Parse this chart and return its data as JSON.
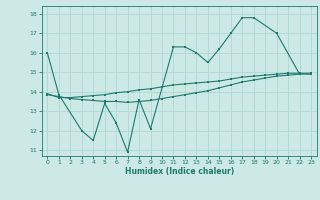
{
  "xlabel": "Humidex (Indice chaleur)",
  "xlim": [
    -0.5,
    23.5
  ],
  "ylim": [
    10.7,
    18.4
  ],
  "yticks": [
    11,
    12,
    13,
    14,
    15,
    16,
    17,
    18
  ],
  "xticks": [
    0,
    1,
    2,
    3,
    4,
    5,
    6,
    7,
    8,
    9,
    10,
    11,
    12,
    13,
    14,
    15,
    16,
    17,
    18,
    19,
    20,
    21,
    22,
    23
  ],
  "bg_color": "#cce9e5",
  "line_color": "#1e7a6e",
  "grid_color": "#b0d8d4",
  "line1_x": [
    0,
    1,
    3,
    4,
    5,
    6,
    7,
    8,
    9,
    11,
    12,
    13,
    14,
    15,
    16,
    17,
    18,
    20,
    22
  ],
  "line1_y": [
    16.0,
    13.85,
    12.0,
    11.5,
    13.4,
    12.4,
    10.9,
    13.6,
    12.1,
    16.3,
    16.3,
    16.0,
    15.5,
    16.2,
    17.0,
    17.8,
    17.8,
    17.0,
    14.9
  ],
  "line2_x": [
    0,
    1,
    2,
    3,
    4,
    5,
    6,
    7,
    8,
    9,
    10,
    11,
    12,
    13,
    14,
    15,
    16,
    17,
    18,
    19,
    20,
    21,
    22,
    23
  ],
  "line2_y": [
    13.9,
    13.7,
    13.7,
    13.75,
    13.8,
    13.85,
    13.95,
    14.0,
    14.1,
    14.15,
    14.25,
    14.35,
    14.4,
    14.45,
    14.5,
    14.55,
    14.65,
    14.75,
    14.8,
    14.85,
    14.9,
    14.95,
    14.95,
    14.95
  ],
  "line3_x": [
    0,
    1,
    2,
    3,
    4,
    5,
    6,
    7,
    8,
    9,
    10,
    11,
    12,
    13,
    14,
    15,
    16,
    17,
    18,
    19,
    20,
    21,
    22,
    23
  ],
  "line3_y": [
    13.85,
    13.75,
    13.65,
    13.6,
    13.55,
    13.5,
    13.5,
    13.45,
    13.5,
    13.55,
    13.65,
    13.75,
    13.85,
    13.95,
    14.05,
    14.2,
    14.35,
    14.5,
    14.6,
    14.7,
    14.8,
    14.85,
    14.9,
    14.9
  ]
}
